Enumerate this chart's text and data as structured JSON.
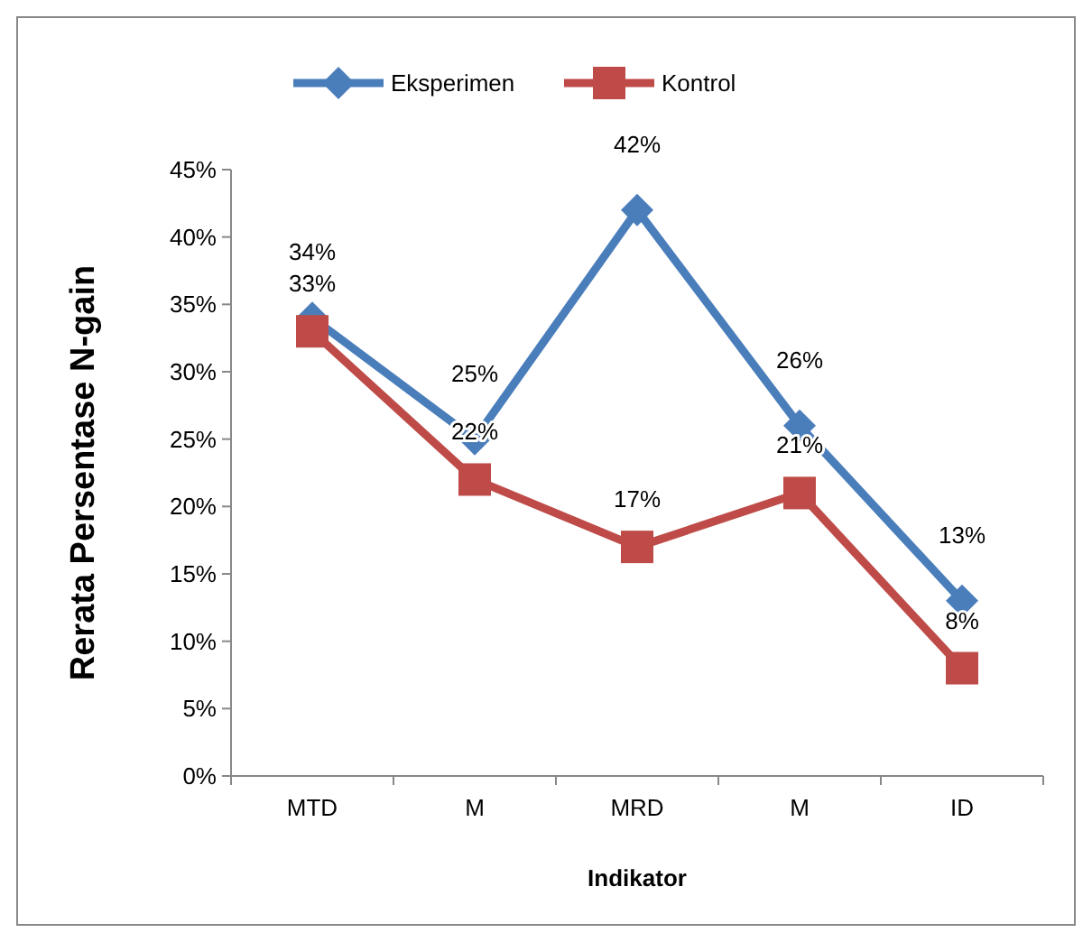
{
  "chart_data": {
    "type": "line",
    "xlabel": "Indikator",
    "ylabel": "Rerata Persentase N-gain",
    "categories": [
      "MTD",
      "M",
      "MRD",
      "M",
      "ID"
    ],
    "series": [
      {
        "name": "Eksperimen",
        "color": "#4a7ebb",
        "marker": "diamond",
        "values": [
          34,
          25,
          42,
          26,
          13
        ],
        "value_labels": [
          "34%",
          "25%",
          "42%",
          "26%",
          "13%"
        ]
      },
      {
        "name": "Kontrol",
        "color": "#be4b48",
        "marker": "square",
        "values": [
          33,
          22,
          17,
          21,
          8
        ],
        "value_labels": [
          "33%",
          "22%",
          "17%",
          "21%",
          "8%"
        ]
      }
    ],
    "ylim": [
      0,
      45
    ],
    "yticks": [
      {
        "value": 0,
        "label": "0%"
      },
      {
        "value": 5,
        "label": "5%"
      },
      {
        "value": 10,
        "label": "10%"
      },
      {
        "value": 15,
        "label": "15%"
      },
      {
        "value": 20,
        "label": "20%"
      },
      {
        "value": 25,
        "label": "25%"
      },
      {
        "value": 30,
        "label": "30%"
      },
      {
        "value": 35,
        "label": "35%"
      },
      {
        "value": 40,
        "label": "40%"
      },
      {
        "value": 45,
        "label": "45%"
      }
    ],
    "legend": "top",
    "grid": false
  }
}
